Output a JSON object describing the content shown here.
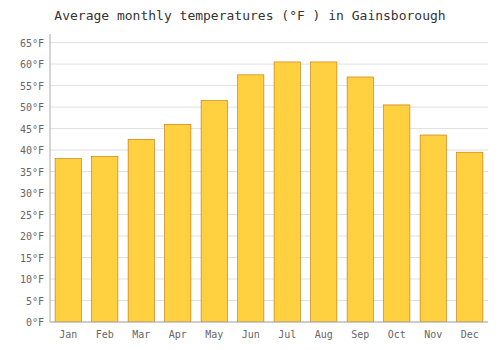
{
  "chart_data": {
    "type": "bar",
    "title": "Average monthly temperatures (°F ) in Gainsborough",
    "categories": [
      "Jan",
      "Feb",
      "Mar",
      "Apr",
      "May",
      "Jun",
      "Jul",
      "Aug",
      "Sep",
      "Oct",
      "Nov",
      "Dec"
    ],
    "values": [
      38.0,
      38.5,
      42.5,
      46.0,
      51.5,
      57.5,
      60.5,
      60.5,
      57.0,
      50.5,
      43.5,
      39.5
    ],
    "color": "#FFD040",
    "ylim": [
      0,
      67
    ],
    "yticks": [
      {
        "value": 0,
        "label": "0°F"
      },
      {
        "value": 5,
        "label": "5°F"
      },
      {
        "value": 10,
        "label": "10°F"
      },
      {
        "value": 15,
        "label": "15°F"
      },
      {
        "value": 20,
        "label": "20°F"
      },
      {
        "value": 25,
        "label": "25°F"
      },
      {
        "value": 30,
        "label": "30°F"
      },
      {
        "value": 35,
        "label": "35°F"
      },
      {
        "value": 40,
        "label": "40°F"
      },
      {
        "value": 45,
        "label": "45°F"
      },
      {
        "value": 50,
        "label": "50°F"
      },
      {
        "value": 55,
        "label": "55°F"
      },
      {
        "value": 60,
        "label": "60°F"
      },
      {
        "value": 65,
        "label": "65°F"
      }
    ],
    "grid": true
  }
}
